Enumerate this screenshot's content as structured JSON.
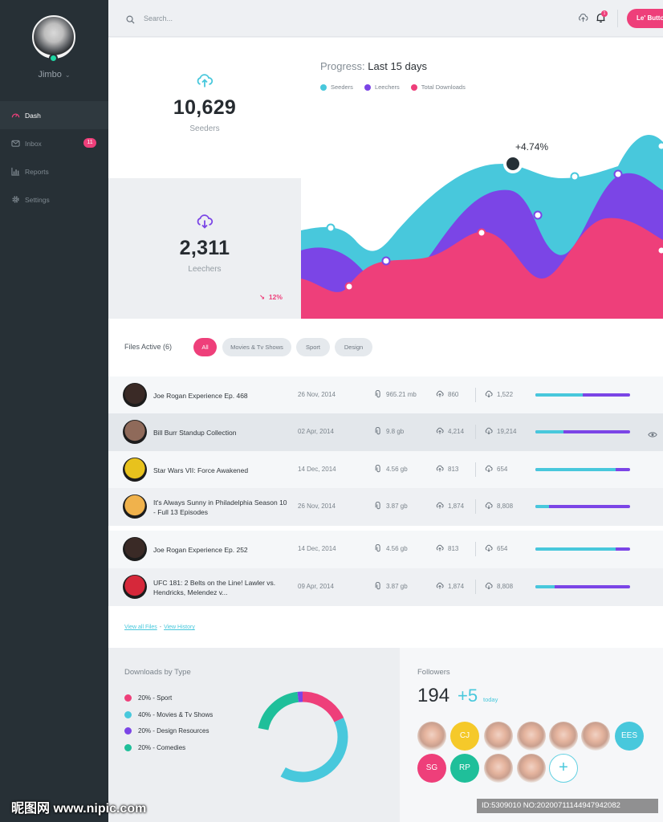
{
  "colors": {
    "accent_pink": "#ee3f7a",
    "accent_cyan": "#48c8dc",
    "accent_purple": "#7b45e6",
    "accent_green": "#1fbf9a",
    "sidebar_bg": "#273036"
  },
  "sidebar": {
    "user": {
      "name": "Jimbo",
      "status": "online"
    },
    "items": [
      {
        "label": "Dash",
        "icon": "dashboard-icon",
        "active": true
      },
      {
        "label": "Inbox",
        "icon": "inbox-icon",
        "badge": "11"
      },
      {
        "label": "Reports",
        "icon": "bar-chart-icon"
      },
      {
        "label": "Settings",
        "icon": "gear-icon"
      }
    ]
  },
  "topbar": {
    "search_placeholder": "Search...",
    "notification_count": "1",
    "button_label": "Le' Button"
  },
  "stats": {
    "seeders": {
      "value": "10,629",
      "label": "Seeders"
    },
    "leechers": {
      "value": "2,311",
      "label": "Leechers",
      "trend": "12%"
    }
  },
  "chart_data": {
    "type": "area",
    "title_prefix": "Progress:",
    "title": "Last 15 days",
    "annotation": "+4.74%",
    "series": [
      {
        "name": "Seeders",
        "color": "#48c8dc"
      },
      {
        "name": "Leechers",
        "color": "#7b45e6"
      },
      {
        "name": "Total Downloads",
        "color": "#ee3f7a"
      }
    ]
  },
  "files": {
    "title": "Files Active (6)",
    "filters": [
      "All",
      "Movies & Tv Shows",
      "Sport",
      "Design"
    ],
    "rows": [
      {
        "name": "Joe Rogan Experience Ep. 468",
        "date": "26 Nov, 2014",
        "size": "965.21 mb",
        "up": "860",
        "down": "1,522",
        "progress": 0.5,
        "thumb": "#3a2a26"
      },
      {
        "name": "Bill Burr Standup Collection",
        "date": "02 Apr, 2014",
        "size": "9.8 gb",
        "up": "4,214",
        "down": "19,214",
        "progress": 0.3,
        "thumb": "#8f6a5a",
        "selected": true
      },
      {
        "name": "Star Wars VII: Force Awakened",
        "date": "14 Dec, 2014",
        "size": "4.56 gb",
        "up": "813",
        "down": "654",
        "progress": 0.85,
        "thumb": "#e8c21d"
      },
      {
        "name": "It's Always Sunny in Philadelphia Season 10 - Full 13 Episodes",
        "date": "26 Nov, 2014",
        "size": "3.87 gb",
        "up": "1,874",
        "down": "8,808",
        "progress": 0.14,
        "thumb": "#f0b24c"
      },
      {
        "name": "Joe Rogan Experience Ep. 252",
        "date": "14 Dec, 2014",
        "size": "4.56 gb",
        "up": "813",
        "down": "654",
        "progress": 0.85,
        "thumb": "#3a2a26"
      },
      {
        "name": "UFC 181: 2 Belts on the Line! Lawler vs. Hendricks, Melendez v...",
        "date": "09 Apr, 2014",
        "size": "3.87 gb",
        "up": "1,874",
        "down": "8,808",
        "progress": 0.2,
        "thumb": "#d6283a"
      }
    ],
    "link_all": "View all Files",
    "link_separator": "-",
    "link_history": "View History"
  },
  "downloads_by_type": {
    "title": "Downloads by Type",
    "items": [
      {
        "label": "20% - Sport",
        "color": "#ee3f7a",
        "pct": 20
      },
      {
        "label": "40% - Movies & Tv Shows",
        "color": "#48c8dc",
        "pct": 40
      },
      {
        "label": "20% - Design Resources",
        "color": "#7b45e6",
        "pct": 20
      },
      {
        "label": "20% - Comedies",
        "color": "#1fbf9a",
        "pct": 20
      }
    ]
  },
  "followers": {
    "title": "Followers",
    "count": "194",
    "delta": "+5",
    "delta_label": "today",
    "avatars": [
      {
        "type": "photo"
      },
      {
        "type": "initials",
        "text": "CJ",
        "color": "#f5c92a"
      },
      {
        "type": "photo"
      },
      {
        "type": "photo"
      },
      {
        "type": "photo"
      },
      {
        "type": "photo"
      },
      {
        "type": "initials",
        "text": "EES",
        "color": "#48c8dc"
      },
      {
        "type": "initials",
        "text": "SG",
        "color": "#ee3f7a"
      },
      {
        "type": "initials",
        "text": "RP",
        "color": "#1fbf9a"
      },
      {
        "type": "photo"
      },
      {
        "type": "photo"
      },
      {
        "type": "add",
        "text": "+"
      }
    ]
  },
  "watermark": {
    "left": "昵图网 www.nipic.com",
    "right": "ID:5309010 NO:20200711144947942082"
  }
}
